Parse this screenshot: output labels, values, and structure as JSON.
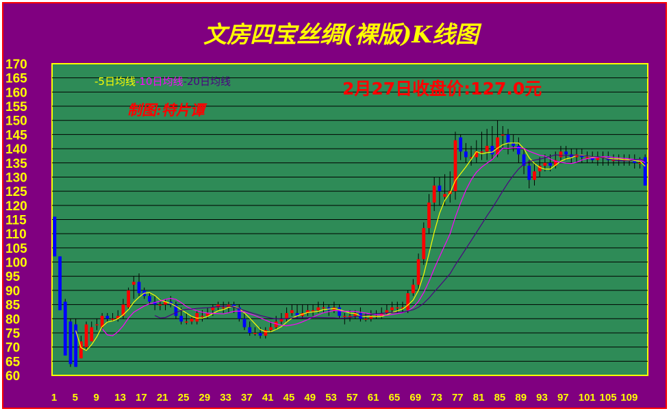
{
  "chart_data": {
    "type": "candlestick",
    "title": "文房四宝丝绸(裸版)K线图",
    "price_note": "2月27日收盘价:127.0元",
    "author_note": "制图:特片谭",
    "legend": [
      {
        "label": "-5日均线",
        "color": "#ffff00"
      },
      {
        "label": "-10日均线",
        "color": "#ff00ff"
      },
      {
        "label": "-20日均线",
        "color": "#4b0082"
      }
    ],
    "ylim": [
      60,
      170
    ],
    "y_ticks": [
      "170",
      "165",
      "160",
      "155",
      "150",
      "145",
      "140",
      "135",
      "130",
      "125",
      "120",
      "115",
      "110",
      "105",
      "100",
      "95",
      "90",
      "85",
      "80",
      "75",
      "70",
      "65",
      "60"
    ],
    "x_ticks": [
      "1",
      "5",
      "9",
      "13",
      "17",
      "21",
      "25",
      "29",
      "33",
      "37",
      "41",
      "45",
      "49",
      "53",
      "57",
      "61",
      "65",
      "69",
      "73",
      "77",
      "81",
      "85",
      "89",
      "93",
      "97",
      "101",
      "105",
      "109"
    ],
    "grid": true,
    "colors": {
      "up": "#ff0000",
      "down": "#0000ff",
      "background": "#2e8b57",
      "frame": "#800080",
      "text": "#ffff00"
    },
    "closes": [
      102,
      83,
      67,
      64,
      63,
      72,
      78,
      77,
      78,
      81,
      80,
      80,
      81,
      85,
      90,
      93,
      89,
      88,
      86,
      85,
      85,
      86,
      85,
      81,
      79,
      79,
      80,
      82,
      81,
      82,
      84,
      85,
      84,
      85,
      84,
      80,
      77,
      75,
      75,
      74,
      76,
      77,
      79,
      80,
      82,
      83,
      81,
      82,
      83,
      83,
      84,
      84,
      83,
      84,
      81,
      81,
      81,
      82,
      80,
      80,
      81,
      81,
      82,
      83,
      84,
      84,
      84,
      89,
      92,
      101,
      112,
      121,
      127,
      125,
      124,
      125,
      143,
      139,
      137,
      137,
      139,
      139,
      141,
      138,
      144,
      145,
      142,
      141,
      138,
      134,
      129,
      132,
      134,
      135,
      134,
      136,
      139,
      138,
      137,
      138,
      137,
      137,
      136,
      137,
      137,
      136,
      136,
      136,
      136,
      136,
      135,
      135,
      127
    ],
    "opens": [
      116,
      102,
      86,
      79,
      78,
      66,
      70,
      72,
      78,
      77,
      81,
      80,
      80,
      81,
      84,
      92,
      93,
      90,
      88,
      86,
      85,
      85,
      86,
      85,
      81,
      79,
      79,
      79,
      81,
      81,
      83,
      84,
      84,
      84,
      85,
      84,
      80,
      77,
      75,
      75,
      74,
      76,
      77,
      79,
      80,
      82,
      82,
      81,
      82,
      83,
      83,
      84,
      84,
      83,
      84,
      81,
      81,
      81,
      82,
      80,
      80,
      81,
      81,
      82,
      83,
      84,
      84,
      83,
      89,
      92,
      101,
      112,
      121,
      127,
      123,
      124,
      125,
      144,
      139,
      137,
      137,
      139,
      139,
      141,
      138,
      145,
      145,
      142,
      141,
      138,
      134,
      129,
      132,
      134,
      135,
      134,
      137,
      139,
      138,
      137,
      138,
      137,
      137,
      136,
      137,
      137,
      136,
      136,
      136,
      136,
      136,
      135,
      137
    ],
    "highs": [
      116,
      102,
      87,
      80,
      80,
      74,
      79,
      79,
      80,
      82,
      82,
      82,
      83,
      87,
      91,
      95,
      96,
      91,
      89,
      88,
      87,
      87,
      88,
      86,
      84,
      82,
      81,
      83,
      83,
      84,
      85,
      86,
      86,
      86,
      86,
      85,
      82,
      79,
      77,
      77,
      77,
      79,
      81,
      82,
      84,
      85,
      85,
      85,
      85,
      85,
      86,
      86,
      85,
      86,
      85,
      82,
      83,
      83,
      84,
      82,
      83,
      83,
      84,
      85,
      86,
      86,
      86,
      90,
      94,
      103,
      114,
      124,
      130,
      130,
      131,
      132,
      146,
      145,
      142,
      141,
      143,
      146,
      147,
      148,
      150,
      148,
      147,
      145,
      144,
      140,
      136,
      135,
      137,
      138,
      138,
      139,
      141,
      141,
      140,
      140,
      140,
      139,
      139,
      139,
      139,
      139,
      138,
      138,
      138,
      138,
      138,
      137,
      138
    ],
    "lows": [
      102,
      83,
      67,
      63,
      63,
      66,
      69,
      72,
      76,
      76,
      79,
      79,
      79,
      80,
      83,
      87,
      88,
      87,
      85,
      83,
      83,
      83,
      84,
      80,
      78,
      78,
      78,
      78,
      79,
      80,
      81,
      83,
      82,
      82,
      82,
      79,
      76,
      74,
      74,
      73,
      73,
      75,
      76,
      78,
      79,
      81,
      80,
      80,
      81,
      81,
      82,
      82,
      81,
      82,
      80,
      78,
      79,
      80,
      79,
      79,
      79,
      80,
      80,
      81,
      82,
      82,
      82,
      82,
      88,
      90,
      99,
      110,
      118,
      120,
      120,
      121,
      122,
      136,
      135,
      134,
      135,
      136,
      136,
      136,
      137,
      140,
      138,
      139,
      135,
      131,
      126,
      127,
      130,
      132,
      132,
      133,
      135,
      136,
      135,
      135,
      135,
      135,
      135,
      134,
      134,
      134,
      134,
      134,
      134,
      134,
      133,
      133,
      127
    ],
    "ma_start": {
      "ma5": 5,
      "ma10": 10,
      "ma20": 20
    }
  }
}
